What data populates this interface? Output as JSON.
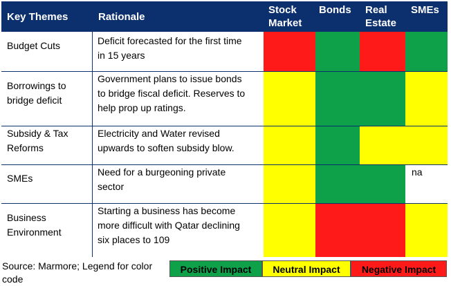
{
  "header": {
    "key_themes": "Key Themes",
    "rationale": "Rationale",
    "stock_market_line1": "Stock",
    "stock_market_line2": "Market",
    "bonds": "Bonds",
    "real_estate_line1": "Real",
    "real_estate_line2": "Estate",
    "smes": "SMEs"
  },
  "rows": [
    {
      "theme": [
        "Budget Cuts"
      ],
      "rationale": [
        "Deficit forecasted for the first time",
        "in 15 years"
      ],
      "impacts": {
        "stock_market": "negative",
        "bonds": "positive",
        "real_estate": "negative",
        "smes": "positive"
      }
    },
    {
      "theme": [
        "Borrowings to",
        "bridge deficit"
      ],
      "rationale": [
        "Government plans to issue bonds",
        "to bridge fiscal deficit. Reserves to",
        "help prop up ratings."
      ],
      "impacts": {
        "stock_market": "neutral",
        "bonds": "positive",
        "real_estate": "positive",
        "smes": "neutral"
      }
    },
    {
      "theme": [
        "Subsidy & Tax",
        "Reforms"
      ],
      "rationale": [
        "Electricity and Water revised",
        "upwards to soften subsidy blow."
      ],
      "impacts": {
        "stock_market": "neutral",
        "bonds": "positive",
        "real_estate": "neutral",
        "smes": "neutral"
      }
    },
    {
      "theme": [
        "SMEs"
      ],
      "rationale": [
        "Need for a burgeoning private",
        "sector"
      ],
      "impacts": {
        "stock_market": "neutral",
        "bonds": "positive",
        "real_estate": "positive",
        "smes": "na"
      },
      "smes_text": "na"
    },
    {
      "theme": [
        "Business",
        "Environment"
      ],
      "rationale": [
        "Starting a business has become",
        "more difficult with Qatar declining",
        "six places to 109"
      ],
      "impacts": {
        "stock_market": "neutral",
        "bonds": "negative",
        "real_estate": "negative",
        "smes": "neutral"
      }
    }
  ],
  "footer": {
    "source_line1": "Source: Marmore; Legend for color",
    "source_line2": "code",
    "legend_positive": "Positive Impact",
    "legend_neutral": "Neutral Impact",
    "legend_negative": "Negative Impact"
  },
  "colors": {
    "header_bg": "#0c2f6e",
    "positive": "#0ea14a",
    "neutral": "#ffff00",
    "negative": "#ff1a1a"
  }
}
